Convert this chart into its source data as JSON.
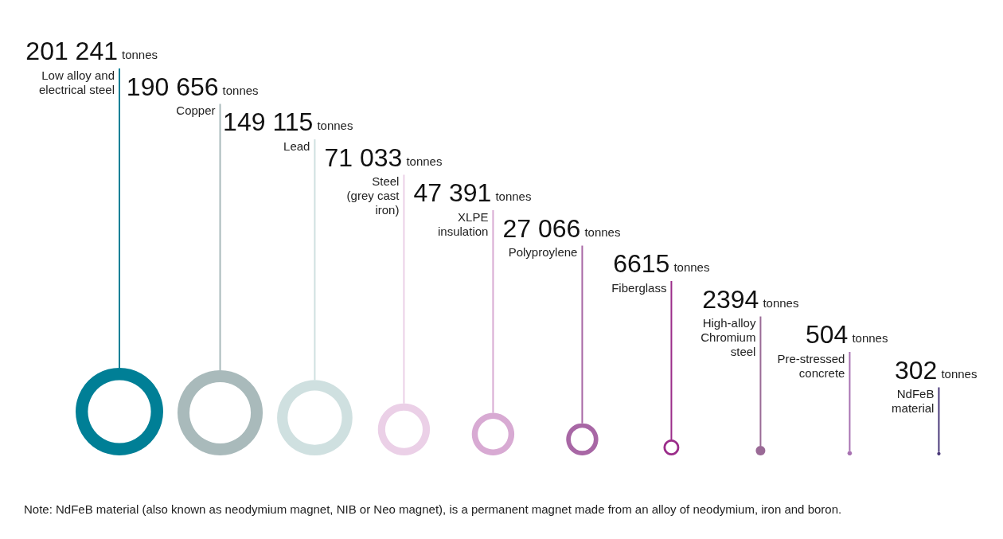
{
  "chart_data": {
    "type": "other",
    "categories": [
      "Low alloy and\nelectrical steel",
      "Copper",
      "Lead",
      "Steel\n(grey cast\niron)",
      "XLPE\ninsulation",
      "Polyproylene",
      "Fiberglass",
      "High-alloy\nChromium\nsteel",
      "Pre-stressed\nconcrete",
      "NdFeB\nmaterial"
    ],
    "values": [
      201241,
      190656,
      149115,
      71033,
      47391,
      27066,
      6615,
      2394,
      504,
      302
    ],
    "value_labels": [
      "201 241",
      "190 656",
      "149 115",
      "71 033",
      "47 391",
      "27 066",
      "6615",
      "2394",
      "504",
      "302"
    ],
    "ylabel": "tonnes",
    "colors": [
      "#007f96",
      "#a9babb",
      "#cfe0e0",
      "#ebd0e7",
      "#d8aad3",
      "#a867a5",
      "#9b2d8a",
      "#9a6a96",
      "#a872b2",
      "#4b3a7a"
    ],
    "annotations": [
      "Note: NdFeB material (also known as neodymium magnet, NIB or Neo magnet), is a permanent magnet made from an alloy of neodymium, iron and boron."
    ]
  }
}
